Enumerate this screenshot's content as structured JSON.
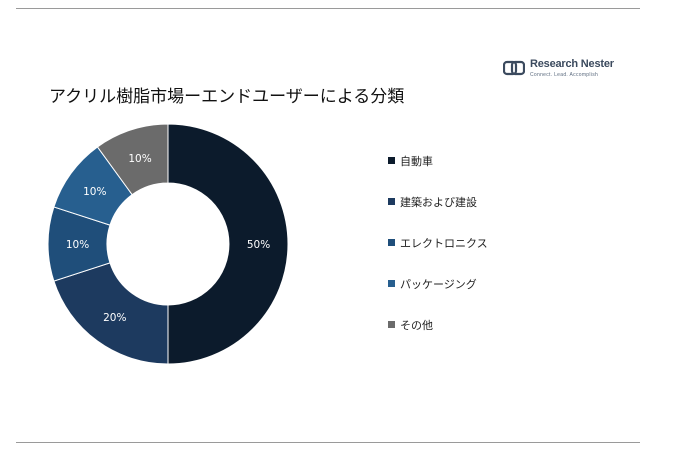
{
  "logo": {
    "name": "Research Nester",
    "tagline": "Connect. Lead. Accomplish"
  },
  "chart_data": {
    "type": "pie",
    "title": "アクリル樹脂市場ーエンドユーザーによる分類",
    "categories": [
      "自動車",
      "建築および建設",
      "エレクトロニクス",
      "パッケージング",
      "その他"
    ],
    "values": [
      50,
      20,
      10,
      10,
      10
    ],
    "labels": [
      "50%",
      "20%",
      "10%",
      "10%",
      "10%"
    ],
    "colors": [
      "#0c1b2c",
      "#1d3a5f",
      "#1f4e7a",
      "#275f8f",
      "#6b6b6b"
    ],
    "donut": true,
    "legend_position": "right"
  }
}
